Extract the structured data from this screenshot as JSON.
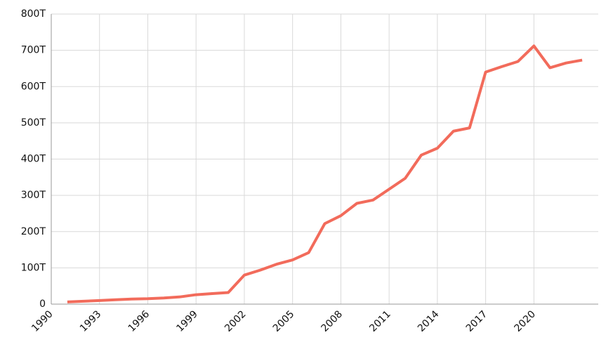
{
  "chart_data": {
    "type": "line",
    "x": [
      1991,
      1992,
      1993,
      1994,
      1995,
      1996,
      1997,
      1998,
      1999,
      2000,
      2001,
      2002,
      2003,
      2004,
      2005,
      2006,
      2007,
      2008,
      2009,
      2010,
      2011,
      2012,
      2013,
      2014,
      2015,
      2016,
      2017,
      2018,
      2019,
      2020,
      2021,
      2022,
      2023
    ],
    "series": [
      {
        "color": "#f26b5b",
        "values": [
          6,
          8,
          10,
          12,
          14,
          15,
          17,
          20,
          26,
          29,
          32,
          80,
          94,
          110,
          122,
          142,
          222,
          244,
          278,
          287,
          317,
          347,
          411,
          430,
          477,
          486,
          640,
          655,
          669,
          712,
          652,
          665,
          673
        ]
      }
    ],
    "xlim": [
      1990,
      2024
    ],
    "xticks": [
      1990,
      1993,
      1996,
      1999,
      2002,
      2005,
      2008,
      2011,
      2014,
      2017,
      2020
    ],
    "ylim": [
      0,
      800
    ],
    "yticks": [
      0,
      {
        "value": 100,
        "label": "100T"
      },
      {
        "value": 200,
        "label": "200T"
      },
      {
        "value": 300,
        "label": "300T"
      },
      {
        "value": 400,
        "label": "400T"
      },
      {
        "value": 500,
        "label": "500T"
      },
      {
        "value": 600,
        "label": "600T"
      },
      {
        "value": 700,
        "label": "700T"
      },
      {
        "value": 800,
        "label": "800T"
      }
    ],
    "grid": true
  }
}
